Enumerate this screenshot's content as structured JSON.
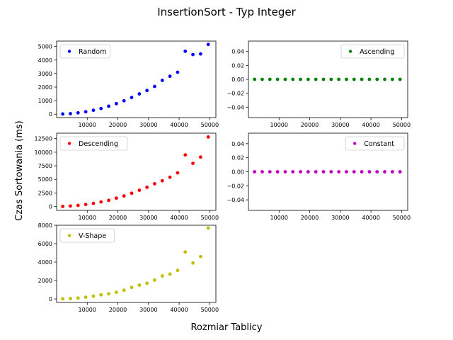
{
  "figure": {
    "title": "InsertionSort - Typ Integer",
    "xlabel": "Rozmiar Tablicy",
    "ylabel": "Czas Sortowania (ms)"
  },
  "chart_data": [
    {
      "type": "scatter",
      "series": [
        {
          "name": "Random",
          "color": "#0000ff"
        }
      ],
      "x": [
        2000,
        4500,
        7000,
        9500,
        12000,
        14500,
        17000,
        19500,
        22000,
        24500,
        27000,
        29500,
        32000,
        34500,
        37000,
        39500,
        42000,
        44500,
        47000,
        49500
      ],
      "y": [
        15,
        40,
        100,
        180,
        290,
        420,
        590,
        780,
        990,
        1230,
        1500,
        1750,
        2050,
        2500,
        2800,
        3100,
        4650,
        4400,
        4450,
        5150
      ],
      "xlim": [
        0,
        52000
      ],
      "ylim": [
        -250,
        5400
      ],
      "xticks": [
        10000,
        20000,
        30000,
        40000,
        50000
      ],
      "yticks": [
        0,
        1000,
        2000,
        3000,
        4000,
        5000
      ],
      "xtick_labels": [
        "10000",
        "20000",
        "30000",
        "40000",
        "50000"
      ],
      "ytick_labels": [
        "0",
        "1000",
        "2000",
        "3000",
        "4000",
        "5000"
      ],
      "legend": "upper left"
    },
    {
      "type": "scatter",
      "series": [
        {
          "name": "Ascending",
          "color": "#008000"
        }
      ],
      "x": [
        2000,
        4500,
        7000,
        9500,
        12000,
        14500,
        17000,
        19500,
        22000,
        24500,
        27000,
        29500,
        32000,
        34500,
        37000,
        39500,
        42000,
        44500,
        47000,
        49500
      ],
      "y": [
        0,
        0,
        0,
        0,
        0,
        0,
        0,
        0,
        0,
        0,
        0,
        0,
        0,
        0,
        0,
        0,
        0,
        0,
        0,
        0
      ],
      "xlim": [
        0,
        52000
      ],
      "ylim": [
        -0.055,
        0.055
      ],
      "xticks": [
        10000,
        20000,
        30000,
        40000,
        50000
      ],
      "yticks": [
        -0.04,
        -0.02,
        0.0,
        0.02,
        0.04
      ],
      "xtick_labels": [
        "10000",
        "20000",
        "30000",
        "40000",
        "50000"
      ],
      "ytick_labels": [
        "−0.04",
        "−0.02",
        "0.00",
        "0.02",
        "0.04"
      ],
      "legend": "upper right"
    },
    {
      "type": "scatter",
      "series": [
        {
          "name": "Descending",
          "color": "#ff0000"
        }
      ],
      "x": [
        2000,
        4500,
        7000,
        9500,
        12000,
        14500,
        17000,
        19500,
        22000,
        24500,
        27000,
        29500,
        32000,
        34500,
        37000,
        39500,
        42000,
        44500,
        47000,
        49500
      ],
      "y": [
        30,
        100,
        220,
        380,
        600,
        850,
        1150,
        1550,
        1950,
        2450,
        3000,
        3550,
        4200,
        4750,
        5400,
        6200,
        9500,
        7950,
        9100,
        12800
      ],
      "xlim": [
        0,
        52000
      ],
      "ylim": [
        -700,
        13500
      ],
      "xticks": [
        10000,
        20000,
        30000,
        40000,
        50000
      ],
      "yticks": [
        0,
        2500,
        5000,
        7500,
        10000,
        12500
      ],
      "xtick_labels": [
        "10000",
        "20000",
        "30000",
        "40000",
        "50000"
      ],
      "ytick_labels": [
        "0",
        "2500",
        "5000",
        "7500",
        "10000",
        "12500"
      ],
      "legend": "upper left"
    },
    {
      "type": "scatter",
      "series": [
        {
          "name": "Constant",
          "color": "#bf00bf"
        }
      ],
      "x": [
        2000,
        4500,
        7000,
        9500,
        12000,
        14500,
        17000,
        19500,
        22000,
        24500,
        27000,
        29500,
        32000,
        34500,
        37000,
        39500,
        42000,
        44500,
        47000,
        49500
      ],
      "y": [
        0,
        0,
        0,
        0,
        0,
        0,
        0,
        0,
        0,
        0,
        0,
        0,
        0,
        0,
        0,
        0,
        0,
        0,
        0,
        0
      ],
      "xlim": [
        0,
        52000
      ],
      "ylim": [
        -0.055,
        0.055
      ],
      "xticks": [
        10000,
        20000,
        30000,
        40000,
        50000
      ],
      "yticks": [
        -0.04,
        -0.02,
        0.0,
        0.02,
        0.04
      ],
      "xtick_labels": [
        "10000",
        "20000",
        "30000",
        "40000",
        "50000"
      ],
      "ytick_labels": [
        "−0.04",
        "−0.02",
        "0.00",
        "0.02",
        "0.04"
      ],
      "legend": "upper right"
    },
    {
      "type": "scatter",
      "series": [
        {
          "name": "V-Shape",
          "color": "#bfbf00"
        }
      ],
      "x": [
        2000,
        4500,
        7000,
        9500,
        12000,
        14500,
        17000,
        19500,
        22000,
        24500,
        27000,
        29500,
        32000,
        34500,
        37000,
        39500,
        42000,
        44500,
        47000,
        49500
      ],
      "y": [
        15,
        40,
        100,
        190,
        310,
        450,
        560,
        720,
        950,
        1250,
        1500,
        1700,
        2050,
        2500,
        2700,
        3100,
        5100,
        3900,
        4600,
        7700
      ],
      "xlim": [
        0,
        52000
      ],
      "ylim": [
        -380,
        8000
      ],
      "xticks": [
        10000,
        20000,
        30000,
        40000,
        50000
      ],
      "yticks": [
        0,
        2000,
        4000,
        6000,
        8000
      ],
      "xtick_labels": [
        "10000",
        "20000",
        "30000",
        "40000",
        "50000"
      ],
      "ytick_labels": [
        "0",
        "2000",
        "4000",
        "6000",
        "8000"
      ],
      "legend": "upper left"
    }
  ]
}
